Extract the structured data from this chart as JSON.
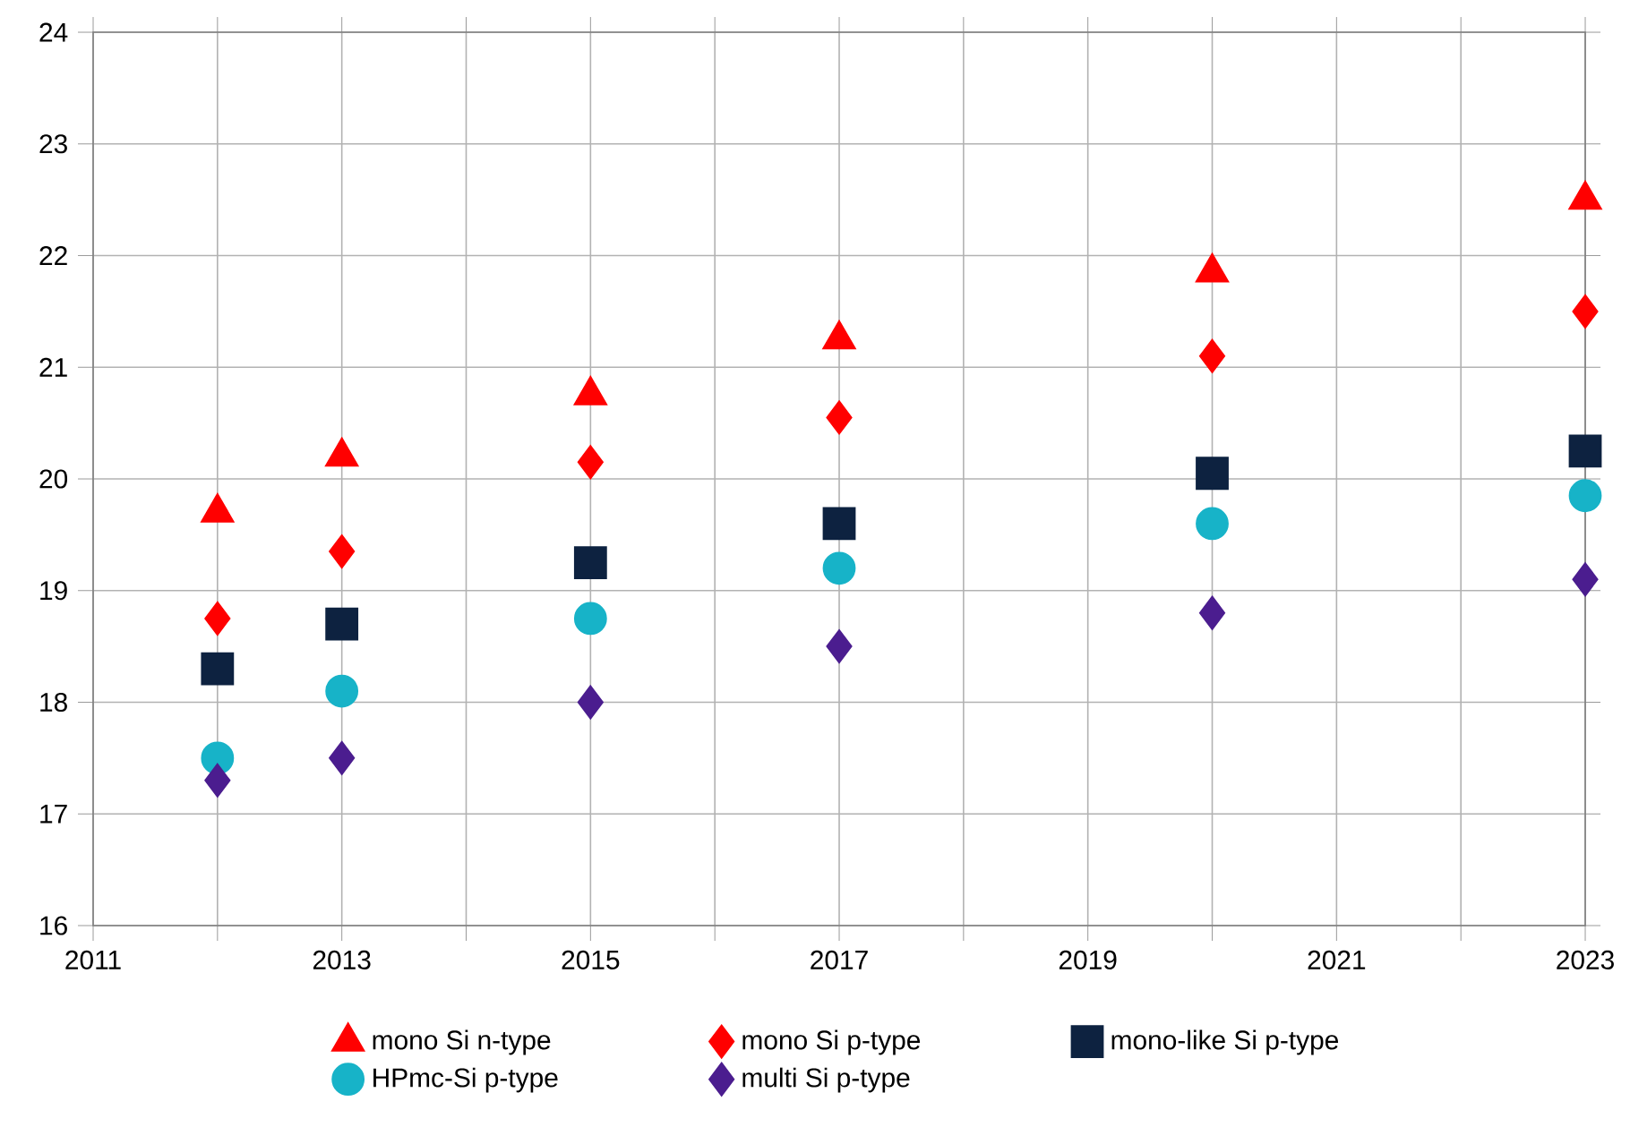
{
  "chart_data": {
    "type": "scatter",
    "x": [
      2012,
      2013,
      2015,
      2017,
      2020,
      2023
    ],
    "series": [
      {
        "name": "mono Si n-type",
        "color": "#ff0000",
        "marker": "triangle",
        "values": [
          19.7,
          20.2,
          20.75,
          21.25,
          21.85,
          22.5
        ]
      },
      {
        "name": "mono Si p-type",
        "color": "#ff0000",
        "marker": "diamond",
        "values": [
          18.75,
          19.35,
          20.15,
          20.55,
          21.1,
          21.5
        ]
      },
      {
        "name": "mono-like Si p-type",
        "color": "#0d2240",
        "marker": "square",
        "values": [
          18.3,
          18.7,
          19.25,
          19.6,
          20.05,
          20.25
        ]
      },
      {
        "name": "HPmc-Si p-type",
        "color": "#17b3c8",
        "marker": "circle",
        "values": [
          17.5,
          18.1,
          18.75,
          19.2,
          19.6,
          19.85
        ]
      },
      {
        "name": "multi Si p-type",
        "color": "#4b1d8f",
        "marker": "diamond",
        "values": [
          17.3,
          17.5,
          18.0,
          18.5,
          18.8,
          19.1
        ]
      }
    ],
    "xlim": [
      2011,
      2023
    ],
    "ylim": [
      16,
      24
    ],
    "xticks": [
      2011,
      {
        "value": 2012,
        "label": null
      },
      2013,
      {
        "value": 2014,
        "label": null
      },
      2015,
      {
        "value": 2016,
        "label": null
      },
      2017,
      {
        "value": 2018,
        "label": null
      },
      2019,
      {
        "value": 2020,
        "label": null
      },
      2021,
      {
        "value": 2022,
        "label": null
      },
      2023
    ],
    "yticks": [
      16,
      17,
      18,
      19,
      20,
      21,
      22,
      23,
      24
    ],
    "grid": true,
    "legend": "bottom"
  }
}
